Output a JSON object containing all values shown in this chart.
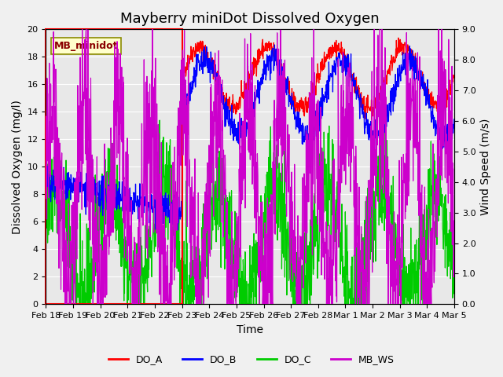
{
  "title": "Mayberry miniDot Dissolved Oxygen",
  "xlabel": "Time",
  "ylabel_left": "Dissolved Oxygen (mg/l)",
  "ylabel_right": "Wind Speed (m/s)",
  "ylim_left": [
    0,
    20
  ],
  "ylim_right": [
    0.0,
    9.0
  ],
  "yticks_left": [
    0,
    2,
    4,
    6,
    8,
    10,
    12,
    14,
    16,
    18,
    20
  ],
  "yticks_right": [
    0.0,
    1.0,
    2.0,
    3.0,
    4.0,
    5.0,
    6.0,
    7.0,
    8.0,
    9.0
  ],
  "background_color": "#f0f0f0",
  "plot_bg_color": "#e8e8e8",
  "color_DO_A": "#ff0000",
  "color_DO_B": "#0000ff",
  "color_DO_C": "#00cc00",
  "color_MB_WS": "#cc00cc",
  "legend_label_DO_A": "DO_A",
  "legend_label_DO_B": "DO_B",
  "legend_label_DO_C": "DO_C",
  "legend_label_MB_WS": "MB_WS",
  "station_label": "MB_minidot",
  "xtick_labels": [
    "Feb 18",
    "Feb 19",
    "Feb 20",
    "Feb 21",
    "Feb 22",
    "Feb 23",
    "Feb 24",
    "Feb 25",
    "Feb 26",
    "Feb 27",
    "Feb 28",
    "Mar 1",
    "Mar 2",
    "Mar 3",
    "Mar 4",
    "Mar 5"
  ],
  "title_fontsize": 13,
  "axis_fontsize": 10,
  "tick_fontsize": 8
}
